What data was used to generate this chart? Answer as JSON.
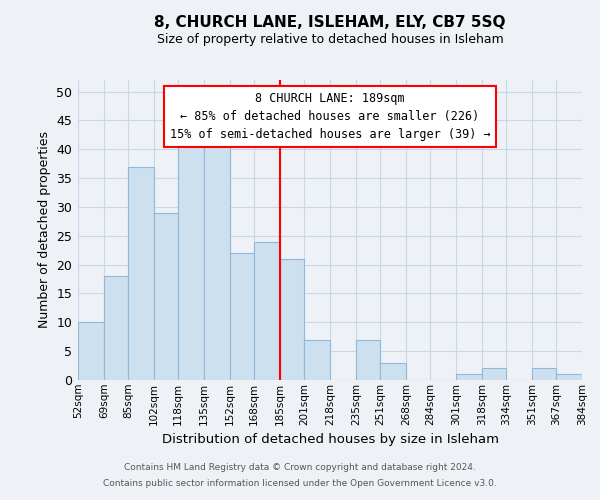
{
  "title": "8, CHURCH LANE, ISLEHAM, ELY, CB7 5SQ",
  "subtitle": "Size of property relative to detached houses in Isleham",
  "xlabel": "Distribution of detached houses by size in Isleham",
  "ylabel": "Number of detached properties",
  "bar_color": "#cde0f0",
  "bar_edge_color": "#90b8d8",
  "background_color": "#eef2f7",
  "grid_color": "#d8e4f0",
  "bin_edges": [
    52,
    69,
    85,
    102,
    118,
    135,
    152,
    168,
    185,
    201,
    218,
    235,
    251,
    268,
    284,
    301,
    318,
    334,
    351,
    367,
    384
  ],
  "counts": [
    10,
    18,
    37,
    29,
    41,
    41,
    22,
    24,
    21,
    7,
    0,
    7,
    3,
    0,
    0,
    1,
    2,
    0,
    2,
    1
  ],
  "tick_labels": [
    "52sqm",
    "69sqm",
    "85sqm",
    "102sqm",
    "118sqm",
    "135sqm",
    "152sqm",
    "168sqm",
    "185sqm",
    "201sqm",
    "218sqm",
    "235sqm",
    "251sqm",
    "268sqm",
    "284sqm",
    "301sqm",
    "318sqm",
    "334sqm",
    "351sqm",
    "367sqm",
    "384sqm"
  ],
  "property_line_x": 185,
  "ylim": [
    0,
    52
  ],
  "yticks": [
    0,
    5,
    10,
    15,
    20,
    25,
    30,
    35,
    40,
    45,
    50
  ],
  "annotation_title": "8 CHURCH LANE: 189sqm",
  "annotation_line1": "← 85% of detached houses are smaller (226)",
  "annotation_line2": "15% of semi-detached houses are larger (39) →",
  "footer_line1": "Contains HM Land Registry data © Crown copyright and database right 2024.",
  "footer_line2": "Contains public sector information licensed under the Open Government Licence v3.0."
}
